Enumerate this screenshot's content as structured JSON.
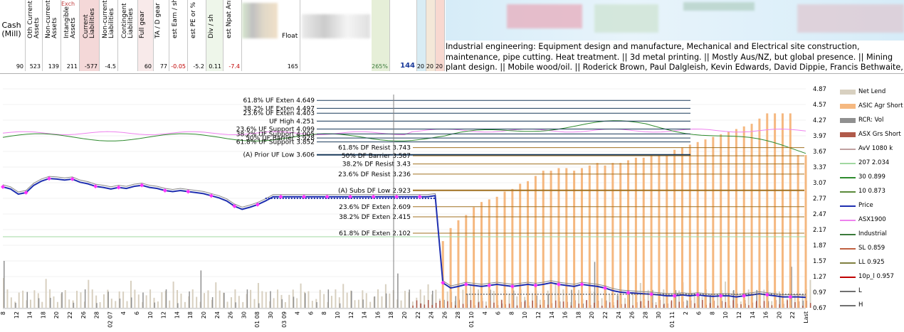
{
  "sheet": {
    "cash_label": "Cash\n(Mill)",
    "cash_value": "90",
    "exch_tag": "Exch",
    "columns": [
      {
        "label": "Oth Current\nAssets",
        "value": "523"
      },
      {
        "label": "Non-current\nAssets",
        "value": "139"
      },
      {
        "label": "Intangible\nAssets",
        "value": "211"
      },
      {
        "label": "Current\nLiabilities",
        "value": "-577"
      },
      {
        "label": "Non-current\nLiabilities",
        "value": "-4.5"
      },
      {
        "label": "Contingent\nLiabilities",
        "value": ""
      },
      {
        "label": "Full gear",
        "value": "60"
      },
      {
        "label": "TA / D gear",
        "value": "77"
      },
      {
        "label": "est Earn / sh",
        "value": "-0.05"
      },
      {
        "label": "est PE or % ann $ burn",
        "value": "-5.2"
      },
      {
        "label": "Div / sh",
        "value": "0.11"
      },
      {
        "label": "est Npat Annualized",
        "value": "-7.4"
      }
    ],
    "float_label": "Float",
    "float_value": "165",
    "pct_value": "265%",
    "count_value": "144",
    "small_values": [
      "20",
      "20",
      "20"
    ],
    "description": "Industrial engineering: Equipment design and manufacture, Mechanical and Electrical site construction, maintenance, pipe cutting. Heat treatment. || 3d metal printing. || Mostly Aus/NZ, but global presence. || Mining plant design. || Mobile wood/oil. || Roderick Brown, Paul Dalgleish, Kevin Edwards, David Dippie, Francis Bethwaite, Eva Skira. || order book ..."
  },
  "colors": {
    "price": "#1f2fb0",
    "marker": "#ff33ff",
    "asic_short": "#f5b880",
    "net_lend": "#d8d0c0",
    "vol": "#909090",
    "asx_grs_short": "#b05a4a",
    "line_30": "#2e8b2e",
    "asx1900": "#ee82ee",
    "level_line": "#1a3a5a",
    "df_line": "#a07020"
  },
  "chart_data": {
    "type": "line",
    "title": "",
    "y_axis_ticks": [
      "4.87",
      "4.57",
      "4.27",
      "3.97",
      "3.67",
      "3.37",
      "3.07",
      "2.77",
      "2.47",
      "2.17",
      "1.87",
      "1.57",
      "1.27",
      "0.97",
      "0.67"
    ],
    "ylim": [
      0.67,
      4.87
    ],
    "x_tick_labels": [
      "8",
      "12",
      "14",
      "18",
      "20",
      "22",
      "26",
      "28",
      "02 07",
      "4",
      "6",
      "10",
      "12",
      "14",
      "18",
      "20",
      "24",
      "26",
      "30",
      "01 08",
      "30",
      "03 09",
      "4",
      "6",
      "8",
      "10",
      "12",
      "14",
      "16",
      "18",
      "20",
      "22",
      "24",
      "26",
      "28",
      "01 10",
      "4",
      "6",
      "8",
      "10",
      "12",
      "14",
      "16",
      "18",
      "20",
      "22",
      "24",
      "26",
      "28",
      "30",
      "01 11",
      "2",
      "6",
      "8",
      "10",
      "12",
      "14",
      "16",
      "20",
      "22",
      "Last"
    ],
    "levels": [
      {
        "label": "61.8% UF Exten 4.649",
        "value": 4.649,
        "kind": "uf"
      },
      {
        "label": "38.2% UF Exten 4.497",
        "value": 4.497,
        "kind": "uf"
      },
      {
        "label": "23.6% UF Exten 4.403",
        "value": 4.403,
        "kind": "uf"
      },
      {
        "label": "UF High 4.251",
        "value": 4.251,
        "kind": "uf"
      },
      {
        "label": "23.6% UF Support 4.099",
        "value": 4.099,
        "kind": "uf"
      },
      {
        "label": "38.2% UF Support 4.005",
        "value": 4.005,
        "kind": "uf"
      },
      {
        "label": "50% UF Barrier 3.928",
        "value": 3.928,
        "kind": "uf"
      },
      {
        "label": "61.8% UF Support 3.852",
        "value": 3.852,
        "kind": "uf"
      },
      {
        "label": "(A)  Prior UF Low 3.606",
        "value": 3.606,
        "kind": "uf-low"
      },
      {
        "label": "61.8% DF Resist 3.743",
        "value": 3.743,
        "kind": "df"
      },
      {
        "label": "50% DF Barrier 3.587",
        "value": 3.587,
        "kind": "df"
      },
      {
        "label": "38.2% DF Resist 3.43",
        "value": 3.43,
        "kind": "df"
      },
      {
        "label": "23.6% DF Resist 3.236",
        "value": 3.236,
        "kind": "df"
      },
      {
        "label": "(A)  Subs DF Low 2.923",
        "value": 2.923,
        "kind": "df-low"
      },
      {
        "label": "23.6% DF Exten 2.609",
        "value": 2.609,
        "kind": "df"
      },
      {
        "label": "38.2% DF Exten 2.415",
        "value": 2.415,
        "kind": "df"
      },
      {
        "label": "61.8% DF Exten 2.102",
        "value": 2.102,
        "kind": "df"
      }
    ],
    "price": [
      2.99,
      2.95,
      2.85,
      2.88,
      3.02,
      3.1,
      3.15,
      3.14,
      3.12,
      3.14,
      3.08,
      3.05,
      3.0,
      2.98,
      2.95,
      2.98,
      2.96,
      3.0,
      3.02,
      2.98,
      2.96,
      2.92,
      2.9,
      2.92,
      2.9,
      2.88,
      2.86,
      2.82,
      2.78,
      2.72,
      2.62,
      2.56,
      2.6,
      2.65,
      2.72,
      2.8,
      2.8,
      2.8,
      2.8,
      2.8,
      2.8,
      2.8,
      2.8,
      2.8,
      2.8,
      2.8,
      2.8,
      2.8,
      2.8,
      2.8,
      2.8,
      2.8,
      2.8,
      2.8,
      2.8,
      2.8,
      2.82,
      1.15,
      1.05,
      1.08,
      1.12,
      1.1,
      1.08,
      1.1,
      1.12,
      1.1,
      1.08,
      1.1,
      1.12,
      1.1,
      1.12,
      1.15,
      1.12,
      1.1,
      1.08,
      1.12,
      1.1,
      1.08,
      1.05,
      1.0,
      0.97,
      0.96,
      0.95,
      0.94,
      0.93,
      0.92,
      0.9,
      0.9,
      0.92,
      0.9,
      0.92,
      0.9,
      0.89,
      0.9,
      0.9,
      0.88,
      0.9,
      0.92,
      0.94,
      0.92,
      0.9,
      0.88,
      0.88,
      0.88,
      0.87
    ],
    "asic_short": [
      0,
      0,
      0,
      0,
      0,
      0,
      0,
      0,
      0,
      0,
      0,
      0,
      0,
      0,
      0,
      0,
      0,
      0,
      0,
      0,
      0,
      0,
      0,
      0,
      0,
      0,
      0,
      0,
      0,
      0,
      0,
      0,
      0,
      0,
      0,
      0,
      0,
      0,
      0,
      0,
      0,
      0,
      0,
      0,
      0,
      0,
      0,
      0,
      0,
      0,
      0,
      0,
      0,
      0,
      0,
      0,
      0,
      1.95,
      2.2,
      2.35,
      2.45,
      2.6,
      2.7,
      2.75,
      2.8,
      2.9,
      2.95,
      3.05,
      3.1,
      3.2,
      3.3,
      3.3,
      3.35,
      3.35,
      3.3,
      3.35,
      3.4,
      3.45,
      3.4,
      3.45,
      3.45,
      3.5,
      3.55,
      3.55,
      3.6,
      3.6,
      3.6,
      3.7,
      3.75,
      3.8,
      3.85,
      3.9,
      3.95,
      4.0,
      4.05,
      4.1,
      4.15,
      4.2,
      4.3,
      4.4,
      4.4,
      4.4,
      4.4,
      3.6,
      3.6
    ],
    "legend": [
      {
        "label": "Net Lend",
        "kind": "swatch",
        "color": "#d8d0c0"
      },
      {
        "label": "ASIC Agr Short",
        "kind": "swatch",
        "color": "#f5b880"
      },
      {
        "label": "RCR: Vol",
        "kind": "swatch",
        "color": "#909090"
      },
      {
        "label": "ASX Grs Short",
        "kind": "swatch",
        "color": "#b05a4a"
      },
      {
        "label": "AvV  1080 k",
        "kind": "line",
        "color": "#c0a0a0"
      },
      {
        "label": "207  2.034",
        "kind": "line",
        "color": "#a0d8a0"
      },
      {
        "label": "30  0.899",
        "kind": "line",
        "color": "#2e8b2e"
      },
      {
        "label": "10  0.873",
        "kind": "line",
        "color": "#5a8a3a"
      },
      {
        "label": "Price",
        "kind": "line",
        "color": "#1f2fb0"
      },
      {
        "label": "ASX1900",
        "kind": "line",
        "color": "#ee82ee"
      },
      {
        "label": "Industrial",
        "kind": "line",
        "color": "#3a7a3a"
      },
      {
        "label": "SL  0.859",
        "kind": "line",
        "color": "#c06040"
      },
      {
        "label": "LL  0.925",
        "kind": "line",
        "color": "#808040"
      },
      {
        "label": "10p_l  0.957",
        "kind": "line",
        "color": "#c00000"
      },
      {
        "label": "L",
        "kind": "line",
        "color": "#707070"
      },
      {
        "label": "H",
        "kind": "line",
        "color": "#707070"
      }
    ]
  }
}
